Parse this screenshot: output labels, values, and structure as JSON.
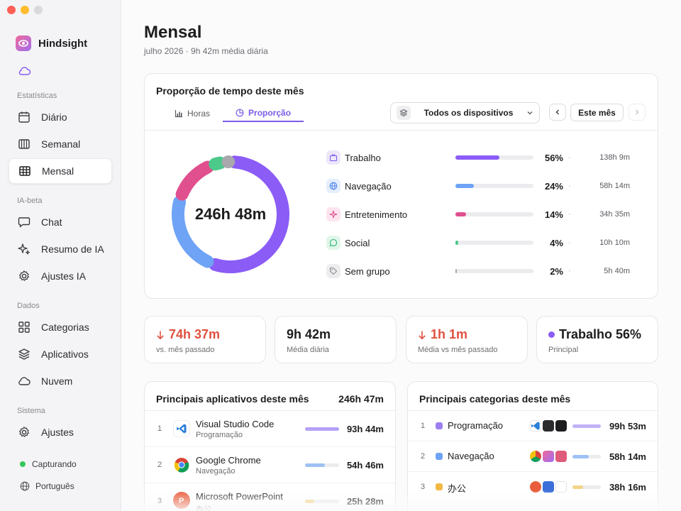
{
  "brand": {
    "name": "Hindsight"
  },
  "sidebar": {
    "sections": {
      "stats": "Estatísticas",
      "ai": "IA-beta",
      "data": "Dados",
      "system": "Sistema"
    },
    "items": [
      {
        "label": "Diário",
        "icon": "calendar-icon"
      },
      {
        "label": "Semanal",
        "icon": "week-columns-icon"
      },
      {
        "label": "Mensal",
        "icon": "grid-icon",
        "active": true
      },
      {
        "label": "Chat",
        "icon": "chat-icon"
      },
      {
        "label": "Resumo de IA",
        "icon": "sparkles-icon"
      },
      {
        "label": "Ajustes IA",
        "icon": "ai-settings-icon"
      },
      {
        "label": "Categorias",
        "icon": "categories-icon"
      },
      {
        "label": "Aplicativos",
        "icon": "layers-icon"
      },
      {
        "label": "Nuvem",
        "icon": "cloud-icon"
      },
      {
        "label": "Ajustes",
        "icon": "gear-icon"
      }
    ],
    "status": "Capturando",
    "language": "Português"
  },
  "page": {
    "title": "Mensal",
    "subtitle": "julho 2026 · 9h 42m média diária"
  },
  "proportion": {
    "title": "Proporção de tempo deste mês",
    "tabs": [
      "Horas",
      "Proporção"
    ],
    "active_tab": "Proporção",
    "device_select": "Todos os dispositivos",
    "period_button": "Este mês",
    "total": "246h 48m",
    "categories": [
      {
        "name": "Trabalho",
        "pct_label": "56%",
        "share": 0.56,
        "hours": "138h 9m",
        "color": "#8b5cf6",
        "icon": "briefcase-icon"
      },
      {
        "name": "Navegação",
        "pct_label": "24%",
        "share": 0.24,
        "hours": "58h 14m",
        "color": "#6ea3f5",
        "icon": "globe-icon"
      },
      {
        "name": "Entretenimento",
        "pct_label": "14%",
        "share": 0.14,
        "hours": "34h 35m",
        "color": "#e0508f",
        "icon": "sparkle-icon"
      },
      {
        "name": "Social",
        "pct_label": "4%",
        "share": 0.04,
        "hours": "10h 10m",
        "color": "#4cc98b",
        "icon": "chat-bubble-icon"
      },
      {
        "name": "Sem grupo",
        "pct_label": "2%",
        "share": 0.02,
        "hours": "5h 40m",
        "color": "#a8a8ad",
        "icon": "tag-icon"
      }
    ]
  },
  "stats": [
    {
      "value": "74h 37m",
      "label": "vs. mês passado",
      "color": "#e0503f",
      "arrow": "down-arrow-icon"
    },
    {
      "value": "9h 42m",
      "label": "Média diária",
      "color": "#1d1d1f"
    },
    {
      "value": "1h 1m",
      "label": "Média vs mês passado",
      "color": "#e0503f",
      "arrow": "down-arrow-icon"
    },
    {
      "value": "Trabalho 56%",
      "label": "Principal",
      "color": "#1d1d1f",
      "dot": "#8b5cf6"
    }
  ],
  "top_apps": {
    "title": "Principais aplicativos deste mês",
    "total": "246h 47m",
    "rows": [
      {
        "rank": "1",
        "name": "Visual Studio Code",
        "category": "Programação",
        "time": "93h 44m",
        "share": 1.0,
        "color": "#b5a1f5"
      },
      {
        "rank": "2",
        "name": "Google Chrome",
        "category": "Navegação",
        "time": "54h 46m",
        "share": 0.58,
        "color": "#9ec1f5"
      },
      {
        "rank": "3",
        "name": "Microsoft PowerPoint",
        "category": "办公",
        "time": "25h 28m",
        "share": 0.27,
        "color": "#f3d48a"
      }
    ]
  },
  "top_categories": {
    "title": "Principais categorias deste mês",
    "rows": [
      {
        "rank": "1",
        "name": "Programação",
        "time": "99h 53m",
        "share": 1.0,
        "color": "#9d7ff0",
        "bar": "#c2b2f7"
      },
      {
        "rank": "2",
        "name": "Navegação",
        "time": "58h 14m",
        "share": 0.58,
        "color": "#6ea3f5",
        "bar": "#9ec1f5"
      },
      {
        "rank": "3",
        "name": "办公",
        "time": "38h 16m",
        "share": 0.38,
        "color": "#f2b844",
        "bar": "#f3d48a"
      }
    ]
  }
}
